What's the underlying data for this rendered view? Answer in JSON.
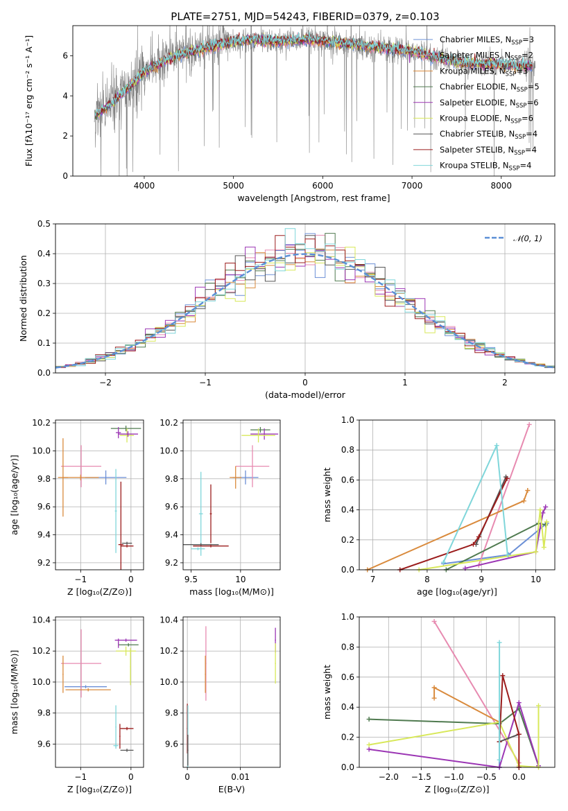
{
  "chart_data": [
    {
      "type": "line",
      "title": "PLATE=2751, MJD=54243, FIBERID=0379, z=0.103",
      "xlabel": "wavelength [Angstrom, rest frame]",
      "ylabel": "Flux [fλ10⁻¹⁷ erg cm⁻² s⁻¹ A⁻¹]",
      "xlim": [
        3200,
        8600
      ],
      "ylim": [
        0,
        7.5
      ],
      "xticks": [
        4000,
        5000,
        6000,
        7000,
        8000
      ],
      "yticks": [
        0,
        2,
        4,
        6
      ],
      "legend_position": "right",
      "series": [
        {
          "name": "Chabrier MILES, N_SSP=3",
          "color": "#6b8fd6"
        },
        {
          "name": "Salpeter MILES, N_SSP=2",
          "color": "#e78ab0"
        },
        {
          "name": "Kroupa MILES, N_SSP=3",
          "color": "#d98a3c"
        },
        {
          "name": "Chabrier ELODIE, N_SSP=5",
          "color": "#4f7a4f"
        },
        {
          "name": "Salpeter ELODIE, N_SSP=6",
          "color": "#9b35b4"
        },
        {
          "name": "Kroupa ELODIE, N_SSP=6",
          "color": "#d8e85a"
        },
        {
          "name": "Chabrier STELIB, N_SSP=4",
          "color": "#555555"
        },
        {
          "name": "Salpeter STELIB, N_SSP=4",
          "color": "#9b1c1c"
        },
        {
          "name": "Kroupa STELIB, N_SSP=4",
          "color": "#7fd6da"
        }
      ],
      "data_color": "#808080",
      "model_curve": {
        "x": [
          3450,
          3600,
          3800,
          4000,
          4300,
          4600,
          4900,
          5200,
          5500,
          5800,
          6100,
          6400,
          6700,
          7000,
          7300,
          7600,
          7900,
          8200,
          8350
        ],
        "y": [
          3.0,
          3.5,
          4.3,
          5.2,
          5.9,
          6.3,
          6.6,
          6.8,
          6.7,
          6.8,
          6.7,
          6.5,
          6.4,
          6.2,
          5.9,
          5.6,
          5.6,
          5.5,
          5.5
        ]
      }
    },
    {
      "type": "histogram",
      "xlabel": "(data-model)/error",
      "ylabel": "Normed distribution",
      "xlim": [
        -2.5,
        2.5
      ],
      "ylim": [
        0,
        0.5
      ],
      "xticks": [
        -2,
        -1,
        0,
        1,
        2
      ],
      "yticks": [
        0.0,
        0.1,
        0.2,
        0.3,
        0.4,
        0.5
      ],
      "legend": "𝒩(0, 1)",
      "reference_curve": "normal(0,1)",
      "reference_color": "#5b8fd6"
    },
    {
      "type": "scatter",
      "xlabel": "Z [log₁₀(Z/Z⊙)]",
      "ylabel": "age  [log₁₀(age/yr)]",
      "xlim": [
        -1.5,
        0.25
      ],
      "ylim": [
        9.15,
        10.22
      ],
      "xticks": [
        -1,
        0
      ],
      "yticks": [
        9.2,
        9.4,
        9.6,
        9.8,
        10.0,
        10.2
      ],
      "crosses": [
        {
          "x": -0.5,
          "y": 9.81,
          "dx": 0.41,
          "dy": 0.05,
          "color": "#6b8fd6"
        },
        {
          "x": -0.99,
          "y": 9.89,
          "dx": 0.4,
          "dy": 0.15,
          "color": "#e78ab0"
        },
        {
          "x": -1.35,
          "y": 9.81,
          "dx": 0.1,
          "dy": 0.28,
          "color": "#d98a3c"
        },
        {
          "x": -1.0,
          "y": 9.81,
          "dx": 0.36,
          "dy": 0.02,
          "color": "#d98a3c"
        },
        {
          "x": -0.1,
          "y": 10.16,
          "dx": 0.3,
          "dy": 0.02,
          "color": "#4f7a4f"
        },
        {
          "x": -0.25,
          "y": 10.13,
          "dx": 0.05,
          "dy": 0.04,
          "color": "#9b35b4"
        },
        {
          "x": -0.08,
          "y": 10.11,
          "dx": 0.14,
          "dy": 0.05,
          "color": "#d8e85a"
        },
        {
          "x": -0.06,
          "y": 10.12,
          "dx": 0.2,
          "dy": 0.02,
          "color": "#9b35b4"
        },
        {
          "x": -0.2,
          "y": 9.33,
          "dx": 0.05,
          "dy": 0.45,
          "color": "#9b1c1c"
        },
        {
          "x": -0.3,
          "y": 9.57,
          "dx": 0.02,
          "dy": 0.3,
          "color": "#7fd6da"
        },
        {
          "x": -0.08,
          "y": 9.34,
          "dx": 0.1,
          "dy": 0.01,
          "color": "#555555"
        },
        {
          "x": -0.08,
          "y": 9.32,
          "dx": 0.13,
          "dy": 0.01,
          "color": "#9b1c1c"
        }
      ]
    },
    {
      "type": "scatter",
      "xlabel": "mass [log₁₀(M/M⊙)]",
      "ylabel": "",
      "xlim": [
        9.42,
        10.4
      ],
      "ylim": [
        9.15,
        10.22
      ],
      "xticks": [
        9.5,
        10.0
      ],
      "yticks": [
        9.2,
        9.4,
        9.6,
        9.8,
        10.0,
        10.2
      ],
      "crosses": [
        {
          "x": 10.05,
          "y": 9.81,
          "dx": 0.13,
          "dy": 0.05,
          "color": "#6b8fd6"
        },
        {
          "x": 10.12,
          "y": 9.89,
          "dx": 0.17,
          "dy": 0.15,
          "color": "#e78ab0"
        },
        {
          "x": 9.95,
          "y": 9.81,
          "dx": 0.06,
          "dy": 0.08,
          "color": "#d98a3c"
        },
        {
          "x": 10.2,
          "y": 10.15,
          "dx": 0.1,
          "dy": 0.02,
          "color": "#4f7a4f"
        },
        {
          "x": 10.24,
          "y": 10.12,
          "dx": 0.14,
          "dy": 0.04,
          "color": "#9b35b4"
        },
        {
          "x": 10.18,
          "y": 10.11,
          "dx": 0.17,
          "dy": 0.05,
          "color": "#d8e85a"
        },
        {
          "x": 9.6,
          "y": 9.55,
          "dx": 0.02,
          "dy": 0.3,
          "color": "#7fd6da"
        },
        {
          "x": 9.7,
          "y": 9.55,
          "dx": 0.01,
          "dy": 0.21,
          "color": "#9b1c1c"
        },
        {
          "x": 9.6,
          "y": 9.33,
          "dx": 0.18,
          "dy": 0.01,
          "color": "#555555"
        },
        {
          "x": 9.7,
          "y": 9.32,
          "dx": 0.18,
          "dy": 0.01,
          "color": "#9b1c1c"
        },
        {
          "x": 9.57,
          "y": 9.3,
          "dx": 0.07,
          "dy": 0.01,
          "color": "#7fd6da"
        }
      ]
    },
    {
      "type": "line",
      "xlabel": "age  [log₁₀(age/yr)]",
      "ylabel": "mass weight",
      "xlim": [
        6.75,
        10.35
      ],
      "ylim": [
        0,
        1.0
      ],
      "xticks": [
        7,
        8,
        9,
        10
      ],
      "yticks": [
        0.0,
        0.2,
        0.4,
        0.6,
        0.8,
        1.0
      ],
      "series": [
        {
          "name": "Chabrier MILES",
          "color": "#6b8fd6",
          "x": [
            8.3,
            9.5,
            10.2
          ],
          "y": [
            0.04,
            0.1,
            0.31
          ]
        },
        {
          "name": "Salpeter MILES",
          "color": "#e78ab0",
          "x": [
            8.95,
            9.88
          ],
          "y": [
            0.03,
            0.97
          ]
        },
        {
          "name": "Kroupa MILES",
          "color": "#d98a3c",
          "x": [
            6.9,
            9.78,
            9.85,
            9.85
          ],
          "y": [
            0.0,
            0.46,
            0.53,
            0.53
          ]
        },
        {
          "name": "Chabrier ELODIE",
          "color": "#4f7a4f",
          "x": [
            8.35,
            10.05,
            10.18
          ],
          "y": [
            0.0,
            0.31,
            0.3
          ]
        },
        {
          "name": "Salpeter ELODIE",
          "color": "#9b35b4",
          "x": [
            8.7,
            10.0,
            10.13,
            10.18
          ],
          "y": [
            0.01,
            0.12,
            0.38,
            0.42
          ]
        },
        {
          "name": "Kroupa ELODIE",
          "color": "#d8e85a",
          "x": [
            7.85,
            10.0,
            10.08,
            10.15,
            10.2
          ],
          "y": [
            0.0,
            0.12,
            0.4,
            0.15,
            0.32
          ]
        },
        {
          "name": "Chabrier STELIB",
          "color": "#555555",
          "x": [
            8.9,
            9.45
          ],
          "y": [
            0.17,
            0.62
          ]
        },
        {
          "name": "Salpeter STELIB",
          "color": "#9b1c1c",
          "x": [
            7.5,
            8.85,
            8.95,
            9.47
          ],
          "y": [
            0.0,
            0.17,
            0.22,
            0.61
          ]
        },
        {
          "name": "Kroupa STELIB",
          "color": "#7fd6da",
          "x": [
            8.3,
            9.28,
            9.48
          ],
          "y": [
            0.05,
            0.83,
            0.1
          ]
        }
      ]
    },
    {
      "type": "scatter",
      "xlabel": "Z [log₁₀(Z/Z⊙)]",
      "ylabel": "mass [log₁₀(M/M⊙)]",
      "xlim": [
        -1.5,
        0.25
      ],
      "ylim": [
        9.45,
        10.42
      ],
      "xticks": [
        -1,
        0
      ],
      "yticks": [
        9.6,
        9.8,
        10.0,
        10.2,
        10.4
      ],
      "crosses": [
        {
          "x": -0.9,
          "y": 9.97,
          "dx": 0.42,
          "dy": 0.01,
          "color": "#6b8fd6"
        },
        {
          "x": -0.99,
          "y": 10.12,
          "dx": 0.4,
          "dy": 0.22,
          "color": "#e78ab0"
        },
        {
          "x": -0.85,
          "y": 9.95,
          "dx": 0.45,
          "dy": 0.01,
          "color": "#d98a3c"
        },
        {
          "x": -1.35,
          "y": 10.05,
          "dx": 0.01,
          "dy": 0.12,
          "color": "#d98a3c"
        },
        {
          "x": -0.05,
          "y": 10.24,
          "dx": 0.2,
          "dy": 0.01,
          "color": "#4f7a4f"
        },
        {
          "x": -0.1,
          "y": 10.27,
          "dx": 0.22,
          "dy": 0.01,
          "color": "#9b35b4"
        },
        {
          "x": -0.1,
          "y": 10.2,
          "dx": 0.2,
          "dy": 0.03,
          "color": "#d8e85a"
        },
        {
          "x": -0.25,
          "y": 10.25,
          "dx": 0.01,
          "dy": 0.03,
          "color": "#9b35b4"
        },
        {
          "x": -0.01,
          "y": 10.1,
          "dx": 0.01,
          "dy": 0.12,
          "color": "#d8e85a"
        },
        {
          "x": -0.3,
          "y": 9.71,
          "dx": 0.01,
          "dy": 0.14,
          "color": "#7fd6da"
        },
        {
          "x": -0.08,
          "y": 9.56,
          "dx": 0.13,
          "dy": 0.01,
          "color": "#555555"
        },
        {
          "x": -0.08,
          "y": 9.7,
          "dx": 0.13,
          "dy": 0.01,
          "color": "#9b1c1c"
        },
        {
          "x": -0.22,
          "y": 9.65,
          "dx": 0.01,
          "dy": 0.08,
          "color": "#9b1c1c"
        },
        {
          "x": -0.3,
          "y": 9.59,
          "dx": 0.05,
          "dy": 0.01,
          "color": "#7fd6da"
        }
      ]
    },
    {
      "type": "scatter",
      "xlabel": "E(B-V)",
      "ylabel": "",
      "xlim": [
        -0.0008,
        0.0175
      ],
      "ylim": [
        9.45,
        10.42
      ],
      "xticks": [
        0.0,
        0.01
      ],
      "yticks": [
        9.6,
        9.8,
        10.0,
        10.2,
        10.4
      ],
      "crosses": [
        {
          "x": 0.0,
          "y": 9.7,
          "dx": 0.0001,
          "dy": 0.16,
          "color": "#9b1c1c"
        },
        {
          "x": 0.0001,
          "y": 9.65,
          "dx": 0.0001,
          "dy": 0.2,
          "color": "#7fd6da"
        },
        {
          "x": 0.0001,
          "y": 9.56,
          "dx": 0.0001,
          "dy": 0.1,
          "color": "#555555"
        },
        {
          "x": 0.0035,
          "y": 10.12,
          "dx": 0.0001,
          "dy": 0.24,
          "color": "#e78ab0"
        },
        {
          "x": 0.0034,
          "y": 10.05,
          "dx": 0.0001,
          "dy": 0.12,
          "color": "#d98a3c"
        },
        {
          "x": 0.0166,
          "y": 10.27,
          "dx": 0.0001,
          "dy": 0.08,
          "color": "#9b35b4"
        },
        {
          "x": 0.0166,
          "y": 10.12,
          "dx": 0.0001,
          "dy": 0.13,
          "color": "#d8e85a"
        }
      ]
    },
    {
      "type": "line",
      "xlabel": "Z [log₁₀(Z/Z⊙)]",
      "ylabel": "mass weight",
      "xlim": [
        -2.45,
        0.55
      ],
      "ylim": [
        0,
        1.0
      ],
      "xticks": [
        -2.0,
        -1.5,
        -1.0,
        -0.5,
        0.0
      ],
      "yticks": [
        0.0,
        0.2,
        0.4,
        0.6,
        0.8,
        1.0
      ],
      "series": [
        {
          "name": "Chabrier MILES",
          "color": "#6b8fd6",
          "x": [
            -0.3,
            -0.3
          ],
          "y": [
            0.0,
            0.3
          ]
        },
        {
          "name": "Salpeter MILES",
          "color": "#e78ab0",
          "x": [
            -1.3,
            0.0
          ],
          "y": [
            0.97,
            0.03
          ]
        },
        {
          "name": "Kroupa MILES",
          "color": "#d98a3c",
          "x": [
            -1.3,
            -1.3,
            -0.3
          ],
          "y": [
            0.46,
            0.53,
            0.3
          ]
        },
        {
          "name": "Chabrier ELODIE",
          "color": "#4f7a4f",
          "x": [
            -2.3,
            -0.3,
            0.0,
            0.3
          ],
          "y": [
            0.32,
            0.29,
            0.39,
            0.01
          ]
        },
        {
          "name": "Salpeter ELODIE",
          "color": "#9b35b4",
          "x": [
            -2.3,
            -0.3,
            0.0,
            0.3
          ],
          "y": [
            0.12,
            0.0,
            0.43,
            0.01
          ]
        },
        {
          "name": "Kroupa ELODIE",
          "color": "#d8e85a",
          "x": [
            -2.3,
            -0.3,
            0.0,
            0.3,
            0.3
          ],
          "y": [
            0.15,
            0.3,
            0.01,
            0.0,
            0.41
          ]
        },
        {
          "name": "Chabrier STELIB",
          "color": "#555555",
          "x": [
            -0.3,
            0.0
          ],
          "y": [
            0.17,
            0.22
          ]
        },
        {
          "name": "Salpeter STELIB",
          "color": "#9b1c1c",
          "x": [
            -0.3,
            -0.25,
            0.0,
            0.0
          ],
          "y": [
            0.17,
            0.61,
            0.22,
            0.0
          ]
        },
        {
          "name": "Kroupa STELIB",
          "color": "#7fd6da",
          "x": [
            -0.3,
            -0.3
          ],
          "y": [
            0.05,
            0.83
          ]
        }
      ]
    }
  ]
}
